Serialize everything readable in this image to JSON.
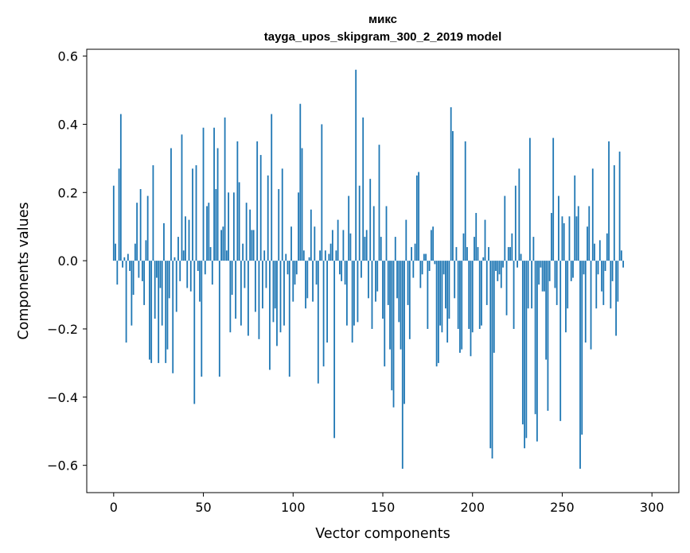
{
  "chart_data": {
    "type": "bar",
    "title": "микс",
    "subtitle": "tayga_upos_skipgram_300_2_2019 model",
    "xlabel": "Vector components",
    "ylabel": "Components values",
    "xlim": [
      -15,
      315
    ],
    "ylim": [
      -0.68,
      0.62
    ],
    "xticks": [
      0,
      50,
      100,
      150,
      200,
      250,
      300
    ],
    "xtick_labels": [
      "0",
      "50",
      "100",
      "150",
      "200",
      "250",
      "300"
    ],
    "yticks": [
      -0.6,
      -0.4,
      -0.2,
      0.0,
      0.2,
      0.4,
      0.6
    ],
    "ytick_labels": [
      "−0.6",
      "−0.4",
      "−0.2",
      "0.0",
      "0.2",
      "0.4",
      "0.6"
    ],
    "bar_color": "#1f77b4",
    "values": [
      0.22,
      0.05,
      -0.07,
      0.27,
      0.43,
      -0.02,
      0.01,
      -0.24,
      0.02,
      -0.03,
      -0.19,
      -0.1,
      0.05,
      0.17,
      -0.05,
      0.21,
      -0.06,
      -0.13,
      0.06,
      0.19,
      -0.29,
      -0.3,
      0.28,
      -0.17,
      -0.05,
      -0.3,
      -0.08,
      -0.19,
      0.11,
      -0.3,
      -0.26,
      -0.11,
      0.33,
      -0.33,
      0.01,
      -0.15,
      0.07,
      -0.06,
      0.37,
      0.03,
      0.13,
      -0.08,
      0.12,
      -0.09,
      0.27,
      -0.42,
      0.28,
      -0.03,
      -0.12,
      -0.34,
      0.39,
      -0.04,
      0.16,
      0.17,
      0.04,
      -0.07,
      0.39,
      0.21,
      0.33,
      -0.34,
      0.09,
      0.1,
      0.42,
      0.03,
      0.2,
      -0.21,
      -0.1,
      0.2,
      -0.17,
      0.35,
      0.23,
      -0.19,
      0.05,
      -0.08,
      0.17,
      -0.22,
      0.15,
      0.09,
      0.09,
      -0.15,
      0.35,
      -0.23,
      0.31,
      -0.14,
      0.03,
      -0.08,
      0.25,
      -0.32,
      0.43,
      -0.18,
      -0.14,
      -0.25,
      0.21,
      -0.21,
      0.27,
      -0.19,
      0.02,
      -0.04,
      -0.34,
      0.1,
      -0.12,
      -0.07,
      -0.04,
      0.2,
      0.46,
      0.33,
      0.03,
      -0.14,
      -0.11,
      0.01,
      0.15,
      -0.12,
      0.1,
      -0.07,
      -0.36,
      0.03,
      0.4,
      -0.31,
      0.03,
      -0.24,
      0.02,
      0.05,
      0.09,
      -0.52,
      0.03,
      0.12,
      -0.04,
      -0.06,
      0.09,
      -0.07,
      -0.19,
      0.19,
      0.08,
      -0.24,
      -0.19,
      0.56,
      -0.18,
      0.22,
      -0.05,
      0.42,
      0.07,
      0.09,
      -0.11,
      0.24,
      -0.2,
      0.16,
      -0.12,
      -0.09,
      0.34,
      0.07,
      -0.17,
      -0.31,
      0.16,
      -0.13,
      -0.26,
      -0.38,
      -0.43,
      0.07,
      -0.11,
      -0.18,
      -0.26,
      -0.61,
      -0.42,
      0.12,
      -0.13,
      -0.23,
      0.04,
      -0.05,
      0.05,
      0.25,
      0.26,
      -0.08,
      -0.04,
      0.02,
      0.02,
      -0.2,
      -0.03,
      0.09,
      0.1,
      -0.01,
      -0.31,
      -0.3,
      -0.19,
      -0.21,
      -0.04,
      -0.14,
      -0.24,
      -0.17,
      0.45,
      0.38,
      -0.11,
      0.04,
      -0.2,
      -0.27,
      -0.26,
      0.08,
      0.35,
      0.04,
      -0.2,
      -0.28,
      -0.21,
      0.07,
      0.14,
      0.04,
      -0.2,
      -0.19,
      0.01,
      0.12,
      -0.13,
      0.04,
      -0.55,
      -0.58,
      -0.27,
      -0.03,
      -0.06,
      -0.04,
      -0.08,
      -0.02,
      0.19,
      -0.16,
      0.04,
      0.04,
      0.08,
      -0.2,
      0.22,
      -0.02,
      0.27,
      0.02,
      -0.48,
      -0.55,
      -0.52,
      -0.14,
      0.36,
      -0.14,
      0.07,
      -0.45,
      -0.53,
      -0.07,
      -0.02,
      -0.09,
      -0.09,
      -0.29,
      -0.44,
      -0.06,
      0.14,
      0.36,
      -0.08,
      -0.13,
      0.19,
      -0.47,
      0.13,
      0.11,
      -0.21,
      -0.14,
      0.13,
      -0.06,
      -0.05,
      0.25,
      0.13,
      0.16,
      -0.61,
      -0.51,
      -0.04,
      -0.24,
      0.1,
      0.16,
      -0.26,
      0.27,
      0.05,
      -0.14,
      -0.04,
      0.06,
      -0.09,
      -0.13,
      -0.03,
      0.08,
      0.35,
      -0.14,
      -0.06,
      0.28,
      -0.22,
      -0.12,
      0.32,
      0.03,
      -0.02
    ]
  }
}
